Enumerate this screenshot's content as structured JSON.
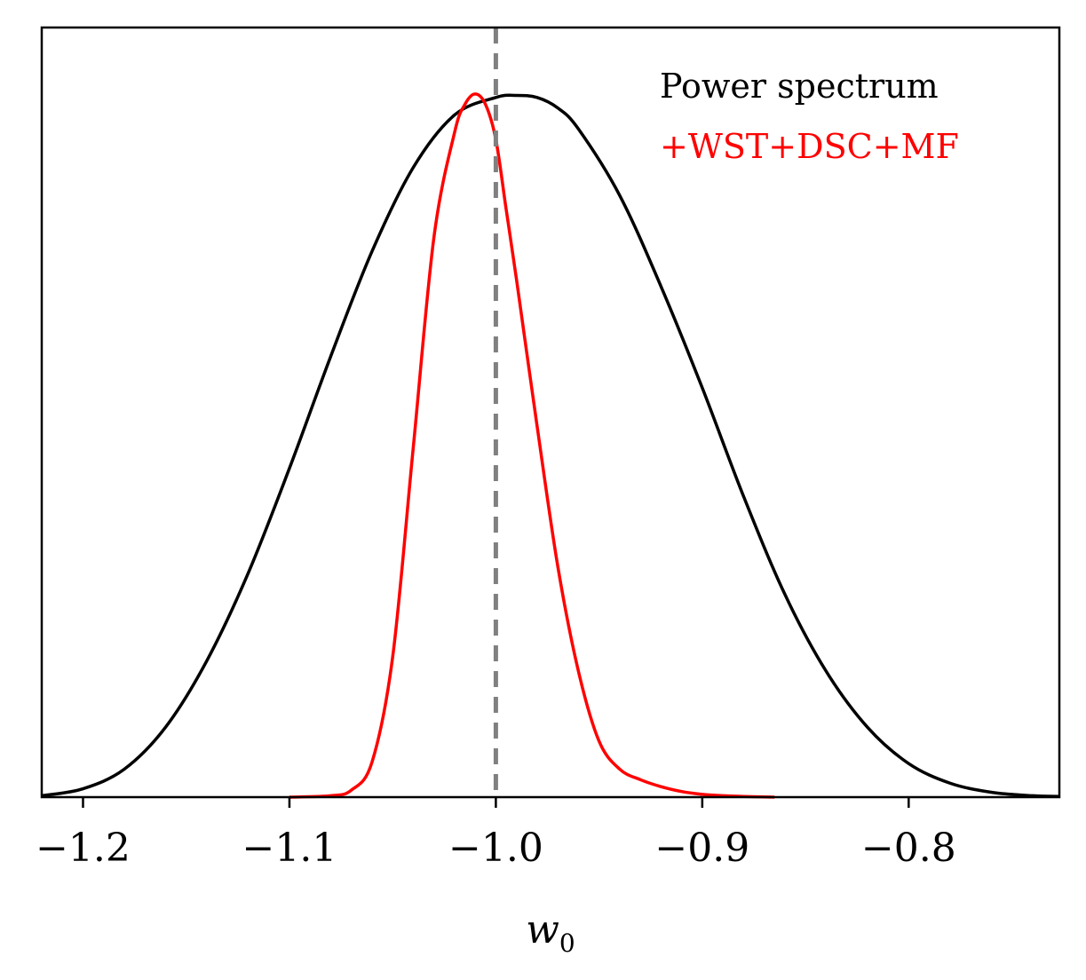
{
  "chart_data": {
    "type": "line",
    "xlabel": "w",
    "xlabel_subscript": "0",
    "xlim": [
      -1.22,
      -0.727
    ],
    "ylim": [
      0,
      1.1
    ],
    "x_ticks": [
      -1.2,
      -1.1,
      -1.0,
      -0.9,
      -0.8
    ],
    "x_tick_labels": [
      "−1.2",
      "−1.1",
      "−1.0",
      "−0.9",
      "−0.8"
    ],
    "y_ticks_visible": false,
    "grid": false,
    "legend_position": "top-right",
    "reference_line": {
      "x": -1.0,
      "style": "dashed",
      "color": "#808080"
    },
    "series": [
      {
        "name": "Power spectrum",
        "color": "#000000",
        "x": [
          -1.22,
          -1.2,
          -1.18,
          -1.16,
          -1.14,
          -1.12,
          -1.1,
          -1.08,
          -1.06,
          -1.04,
          -1.02,
          -1.0,
          -0.99,
          -0.98,
          -0.97,
          -0.96,
          -0.94,
          -0.92,
          -0.9,
          -0.88,
          -0.86,
          -0.84,
          -0.82,
          -0.8,
          -0.78,
          -0.76,
          -0.74,
          -0.727
        ],
        "y": [
          0.002,
          0.012,
          0.04,
          0.1,
          0.195,
          0.32,
          0.47,
          0.63,
          0.78,
          0.9,
          0.975,
          1.0,
          1.003,
          1.0,
          0.985,
          0.955,
          0.86,
          0.73,
          0.585,
          0.43,
          0.29,
          0.18,
          0.1,
          0.048,
          0.02,
          0.007,
          0.002,
          0.001
        ]
      },
      {
        "name": "+WST+DSC+MF",
        "color": "#ff0000",
        "x": [
          -1.1,
          -1.08,
          -1.07,
          -1.06,
          -1.05,
          -1.04,
          -1.03,
          -1.02,
          -1.015,
          -1.01,
          -1.005,
          -1.0,
          -0.995,
          -0.99,
          -0.98,
          -0.97,
          -0.96,
          -0.95,
          -0.94,
          -0.93,
          -0.92,
          -0.91,
          -0.9,
          -0.89,
          -0.88,
          -0.865
        ],
        "y": [
          0.0,
          0.002,
          0.01,
          0.05,
          0.2,
          0.5,
          0.8,
          0.95,
          0.99,
          1.005,
          0.99,
          0.94,
          0.84,
          0.74,
          0.53,
          0.33,
          0.18,
          0.08,
          0.04,
          0.025,
          0.015,
          0.008,
          0.004,
          0.002,
          0.001,
          0.0
        ]
      }
    ]
  }
}
